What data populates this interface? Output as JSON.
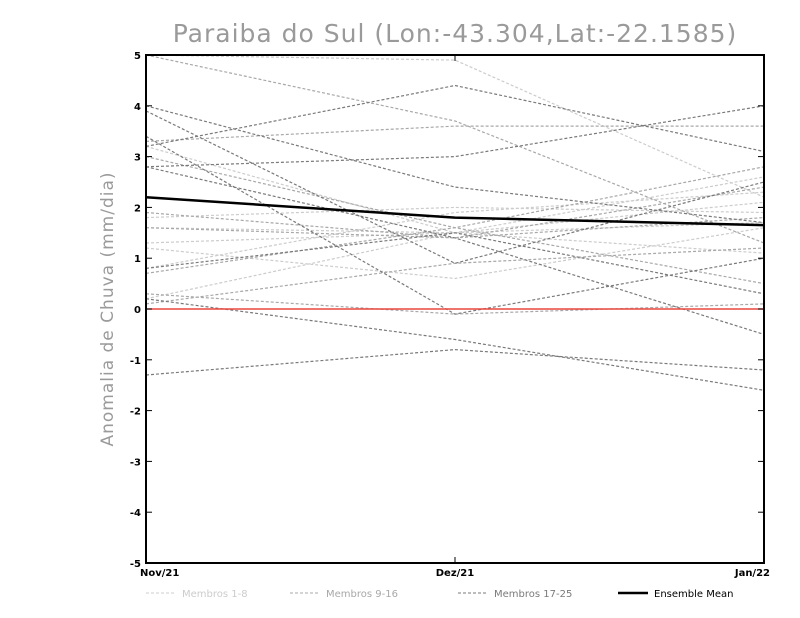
{
  "chart_data": {
    "type": "line",
    "title": "Paraiba do Sul (Lon:-43.304,Lat:-22.1585)",
    "ylabel": "Anomalia de Chuva (mm/dia)",
    "xlabel": "",
    "categories": [
      "Nov/21",
      "Dez/21",
      "Jan/22"
    ],
    "ylim": [
      -5,
      5
    ],
    "yticks": [
      5,
      4,
      3,
      2,
      1,
      0,
      -1,
      -2,
      -3,
      -4,
      -5
    ],
    "zero_line_color": "#e8473d",
    "groups": [
      {
        "name": "Membros 1-8",
        "color": "#cccccc"
      },
      {
        "name": "Membros 9-16",
        "color": "#a8a8a8"
      },
      {
        "name": "Membros 17-25",
        "color": "#7a7a7a"
      }
    ],
    "series": [
      {
        "group": 0,
        "values": [
          5.0,
          4.9,
          2.2
        ]
      },
      {
        "group": 0,
        "values": [
          3.2,
          1.5,
          2.6
        ]
      },
      {
        "group": 0,
        "values": [
          1.8,
          2.0,
          1.9
        ]
      },
      {
        "group": 0,
        "values": [
          1.6,
          1.5,
          2.1
        ]
      },
      {
        "group": 0,
        "values": [
          1.3,
          1.5,
          1.7
        ]
      },
      {
        "group": 0,
        "values": [
          1.2,
          0.6,
          1.6
        ]
      },
      {
        "group": 0,
        "values": [
          0.8,
          1.9,
          2.3
        ]
      },
      {
        "group": 0,
        "values": [
          0.2,
          1.5,
          1.1
        ]
      },
      {
        "group": 1,
        "values": [
          5.0,
          3.7,
          1.3
        ]
      },
      {
        "group": 1,
        "values": [
          3.3,
          3.6,
          3.6
        ]
      },
      {
        "group": 1,
        "values": [
          3.0,
          1.6,
          0.5
        ]
      },
      {
        "group": 1,
        "values": [
          1.9,
          1.4,
          1.8
        ]
      },
      {
        "group": 1,
        "values": [
          1.6,
          1.4,
          2.4
        ]
      },
      {
        "group": 1,
        "values": [
          0.7,
          1.6,
          2.8
        ]
      },
      {
        "group": 1,
        "values": [
          0.3,
          -0.1,
          0.1
        ]
      },
      {
        "group": 1,
        "values": [
          0.1,
          0.9,
          1.2
        ]
      },
      {
        "group": 2,
        "values": [
          4.0,
          2.4,
          1.7
        ]
      },
      {
        "group": 2,
        "values": [
          3.9,
          0.9,
          2.5
        ]
      },
      {
        "group": 2,
        "values": [
          3.4,
          -0.1,
          1.0
        ]
      },
      {
        "group": 2,
        "values": [
          3.2,
          4.4,
          3.1
        ]
      },
      {
        "group": 2,
        "values": [
          2.8,
          3.0,
          4.0
        ]
      },
      {
        "group": 2,
        "values": [
          2.8,
          1.4,
          -0.5
        ]
      },
      {
        "group": 2,
        "values": [
          0.8,
          1.5,
          0.3
        ]
      },
      {
        "group": 2,
        "values": [
          0.2,
          -0.6,
          -1.6
        ]
      },
      {
        "group": 2,
        "values": [
          -1.3,
          -0.8,
          -1.2
        ]
      }
    ],
    "ensemble_mean": {
      "name": "Ensemble Mean",
      "color": "#000000",
      "values": [
        2.2,
        1.8,
        1.65
      ]
    },
    "legend": [
      "Membros 1-8",
      "Membros 9-16",
      "Membros 17-25",
      "Ensemble Mean"
    ]
  }
}
